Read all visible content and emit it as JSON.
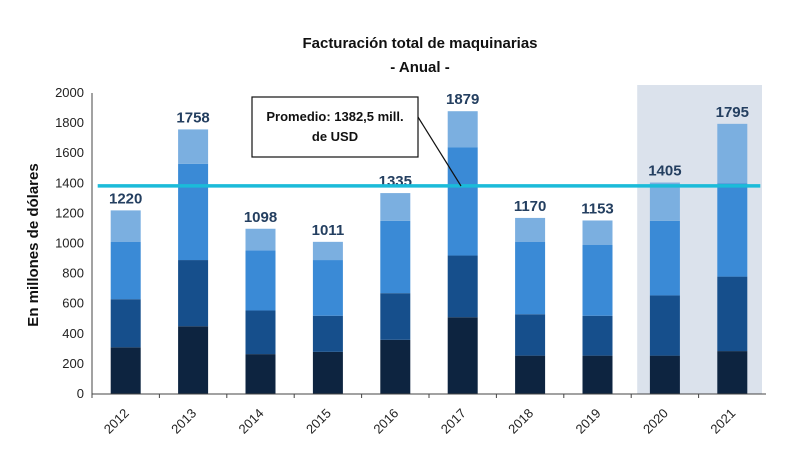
{
  "chart_data": {
    "type": "bar",
    "stacked": true,
    "title": "Facturación total de maquinarias",
    "subtitle": "- Anual -",
    "ylabel": "En millones de dólares",
    "xlabel": "",
    "ylim": [
      0,
      2000
    ],
    "yticks": [
      "0",
      "200",
      "400",
      "600",
      "800",
      "1000",
      "1200",
      "1400",
      "1600",
      "1800",
      "2000"
    ],
    "categories": [
      "2012",
      "2013",
      "2014",
      "2015",
      "2016",
      "2017",
      "2018",
      "2019",
      "2020",
      "2021"
    ],
    "totals": [
      "1220",
      "1758",
      "1098",
      "1011",
      "1335",
      "1879",
      "1170",
      "1153",
      "1405",
      "1795"
    ],
    "series": [
      {
        "values": [
          310,
          450,
          265,
          280,
          360,
          510,
          255,
          255,
          255,
          285
        ],
        "color": "#0d2440"
      },
      {
        "values": [
          320,
          440,
          290,
          240,
          310,
          410,
          275,
          265,
          400,
          495
        ],
        "color": "#164f8c"
      },
      {
        "values": [
          380,
          640,
          400,
          370,
          480,
          720,
          480,
          470,
          495,
          620
        ],
        "color": "#3a8ad6"
      },
      {
        "values": [
          210,
          228,
          143,
          121,
          185,
          239,
          160,
          163,
          255,
          395
        ],
        "color": "#7bafe0"
      }
    ],
    "average": {
      "value": 1382.5,
      "color": "#1bbbd9"
    },
    "callout": {
      "line1": "Promedio: 1382,5 mill.",
      "line2": "de USD"
    },
    "highlight": {
      "categories": [
        "2020",
        "2021"
      ],
      "color": "#dbe2ec"
    },
    "grid": false
  }
}
